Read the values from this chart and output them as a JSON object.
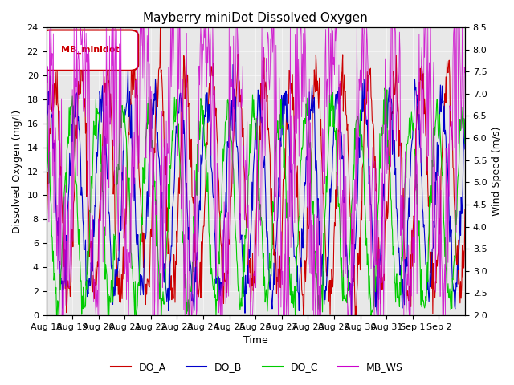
{
  "title": "Mayberry miniDot Dissolved Oxygen",
  "xlabel": "Time",
  "ylabel_left": "Dissolved Oxygen (mg/l)",
  "ylabel_right": "Wind Speed (m/s)",
  "ylim_left": [
    0,
    24
  ],
  "ylim_right": [
    2.0,
    8.5
  ],
  "yticks_left": [
    0,
    2,
    4,
    6,
    8,
    10,
    12,
    14,
    16,
    18,
    20,
    22,
    24
  ],
  "yticks_right": [
    2.0,
    2.5,
    3.0,
    3.5,
    4.0,
    4.5,
    5.0,
    5.5,
    6.0,
    6.5,
    7.0,
    7.5,
    8.0,
    8.5
  ],
  "n_days": 16,
  "xtick_labels": [
    "Aug 18",
    "Aug 19",
    "Aug 20",
    "Aug 21",
    "Aug 22",
    "Aug 23",
    "Aug 24",
    "Aug 25",
    "Aug 26",
    "Aug 27",
    "Aug 28",
    "Aug 29",
    "Aug 30",
    "Aug 31",
    "Sep 1",
    "Sep 2"
  ],
  "colors": {
    "DO_A": "#cc0000",
    "DO_B": "#0000cc",
    "DO_C": "#00cc00",
    "MB_WS": "#cc00cc"
  },
  "legend_label_box": "MB_minidot",
  "legend_box_color": "#cc0000",
  "background_color": "#e8e8e8",
  "seed": 42
}
